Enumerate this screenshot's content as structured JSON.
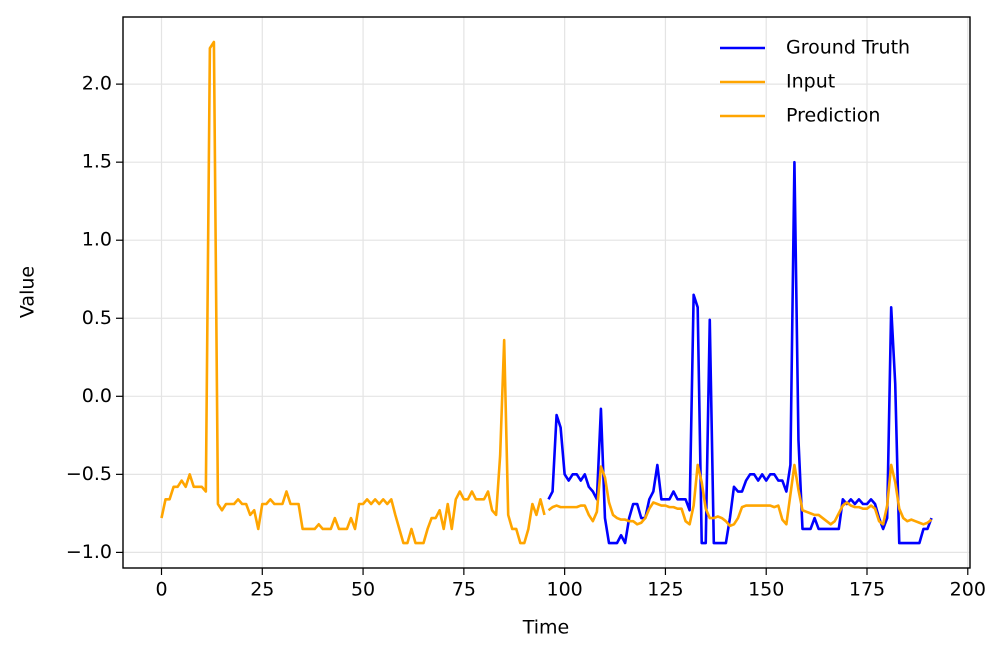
{
  "chart_data": {
    "type": "line",
    "xlabel": "Time",
    "ylabel": "Value",
    "xlim": [
      -9.55,
      200.55
    ],
    "ylim": [
      -1.1,
      2.43
    ],
    "xticks": [
      0,
      25,
      50,
      75,
      100,
      125,
      150,
      175,
      200
    ],
    "yticks": [
      {
        "value": -1.0,
        "label": "−1.0"
      },
      {
        "value": -0.5,
        "label": "−0.5"
      },
      {
        "value": 0.0,
        "label": "0.0"
      },
      {
        "value": 0.5,
        "label": "0.5"
      },
      {
        "value": 1.0,
        "label": "1.0"
      },
      {
        "value": 1.5,
        "label": "1.5"
      },
      {
        "value": 2.0,
        "label": "2.0"
      }
    ],
    "grid": true,
    "legend": "upper right",
    "series": [
      {
        "name": "Ground Truth",
        "color": "#0000ff",
        "x": [
          96,
          97,
          98,
          99,
          100,
          101,
          102,
          103,
          104,
          105,
          106,
          107,
          108,
          109,
          110,
          111,
          112,
          113,
          114,
          115,
          116,
          117,
          118,
          119,
          120,
          121,
          122,
          123,
          124,
          125,
          126,
          127,
          128,
          129,
          130,
          131,
          132,
          133,
          134,
          135,
          136,
          137,
          138,
          139,
          140,
          141,
          142,
          143,
          144,
          145,
          146,
          147,
          148,
          149,
          150,
          151,
          152,
          153,
          154,
          155,
          156,
          157,
          158,
          159,
          160,
          161,
          162,
          163,
          164,
          165,
          166,
          167,
          168,
          169,
          170,
          171,
          172,
          173,
          174,
          175,
          176,
          177,
          178,
          179,
          180,
          181,
          182,
          183,
          184,
          185,
          186,
          187,
          188,
          189,
          190,
          191
        ],
        "values": [
          -0.66,
          -0.61,
          -0.12,
          -0.2,
          -0.5,
          -0.54,
          -0.5,
          -0.5,
          -0.54,
          -0.5,
          -0.58,
          -0.61,
          -0.66,
          -0.08,
          -0.78,
          -0.94,
          -0.94,
          -0.94,
          -0.89,
          -0.94,
          -0.78,
          -0.69,
          -0.69,
          -0.78,
          -0.78,
          -0.66,
          -0.61,
          -0.44,
          -0.66,
          -0.66,
          -0.66,
          -0.61,
          -0.66,
          -0.66,
          -0.66,
          -0.73,
          0.65,
          0.57,
          -0.94,
          -0.94,
          0.49,
          -0.94,
          -0.94,
          -0.94,
          -0.94,
          -0.78,
          -0.58,
          -0.61,
          -0.61,
          -0.54,
          -0.5,
          -0.5,
          -0.54,
          -0.5,
          -0.54,
          -0.5,
          -0.5,
          -0.54,
          -0.54,
          -0.61,
          -0.44,
          1.5,
          -0.28,
          -0.85,
          -0.85,
          -0.85,
          -0.78,
          -0.85,
          -0.85,
          -0.85,
          -0.85,
          -0.85,
          -0.85,
          -0.66,
          -0.69,
          -0.66,
          -0.69,
          -0.66,
          -0.69,
          -0.69,
          -0.66,
          -0.69,
          -0.78,
          -0.85,
          -0.78,
          0.57,
          0.08,
          -0.94,
          -0.94,
          -0.94,
          -0.94,
          -0.94,
          -0.94,
          -0.85,
          -0.85,
          -0.78
        ]
      },
      {
        "name": "Input",
        "color": "#ffa500",
        "x": [
          0,
          1,
          2,
          3,
          4,
          5,
          6,
          7,
          8,
          9,
          10,
          11,
          12,
          13,
          14,
          15,
          16,
          17,
          18,
          19,
          20,
          21,
          22,
          23,
          24,
          25,
          26,
          27,
          28,
          29,
          30,
          31,
          32,
          33,
          34,
          35,
          36,
          37,
          38,
          39,
          40,
          41,
          42,
          43,
          44,
          45,
          46,
          47,
          48,
          49,
          50,
          51,
          52,
          53,
          54,
          55,
          56,
          57,
          58,
          59,
          60,
          61,
          62,
          63,
          64,
          65,
          66,
          67,
          68,
          69,
          70,
          71,
          72,
          73,
          74,
          75,
          76,
          77,
          78,
          79,
          80,
          81,
          82,
          83,
          84,
          85,
          86,
          87,
          88,
          89,
          90,
          91,
          92,
          93,
          94,
          95
        ],
        "values": [
          -0.78,
          -0.66,
          -0.66,
          -0.58,
          -0.58,
          -0.54,
          -0.58,
          -0.5,
          -0.58,
          -0.58,
          -0.58,
          -0.61,
          2.23,
          2.27,
          -0.69,
          -0.73,
          -0.69,
          -0.69,
          -0.69,
          -0.66,
          -0.69,
          -0.69,
          -0.76,
          -0.73,
          -0.85,
          -0.69,
          -0.69,
          -0.66,
          -0.69,
          -0.69,
          -0.69,
          -0.61,
          -0.69,
          -0.69,
          -0.69,
          -0.85,
          -0.85,
          -0.85,
          -0.85,
          -0.82,
          -0.85,
          -0.85,
          -0.85,
          -0.78,
          -0.85,
          -0.85,
          -0.85,
          -0.78,
          -0.85,
          -0.69,
          -0.69,
          -0.66,
          -0.69,
          -0.66,
          -0.69,
          -0.66,
          -0.69,
          -0.66,
          -0.76,
          -0.85,
          -0.94,
          -0.94,
          -0.85,
          -0.94,
          -0.94,
          -0.94,
          -0.85,
          -0.78,
          -0.78,
          -0.73,
          -0.85,
          -0.69,
          -0.85,
          -0.66,
          -0.61,
          -0.66,
          -0.66,
          -0.61,
          -0.66,
          -0.66,
          -0.66,
          -0.61,
          -0.73,
          -0.76,
          -0.38,
          0.36,
          -0.76,
          -0.85,
          -0.85,
          -0.94,
          -0.94,
          -0.85,
          -0.69,
          -0.76,
          -0.66,
          -0.76
        ]
      },
      {
        "name": "Prediction",
        "color": "#ffa500",
        "x": [
          96,
          97,
          98,
          99,
          100,
          101,
          102,
          103,
          104,
          105,
          106,
          107,
          108,
          109,
          110,
          111,
          112,
          113,
          114,
          115,
          116,
          117,
          118,
          119,
          120,
          121,
          122,
          123,
          124,
          125,
          126,
          127,
          128,
          129,
          130,
          131,
          132,
          133,
          134,
          135,
          136,
          137,
          138,
          139,
          140,
          141,
          142,
          143,
          144,
          145,
          146,
          147,
          148,
          149,
          150,
          151,
          152,
          153,
          154,
          155,
          156,
          157,
          158,
          159,
          160,
          161,
          162,
          163,
          164,
          165,
          166,
          167,
          168,
          169,
          170,
          171,
          172,
          173,
          174,
          175,
          176,
          177,
          178,
          179,
          180,
          181,
          182,
          183,
          184,
          185,
          186,
          187,
          188,
          189,
          190,
          191
        ],
        "values": [
          -0.73,
          -0.71,
          -0.7,
          -0.71,
          -0.71,
          -0.71,
          -0.71,
          -0.71,
          -0.7,
          -0.7,
          -0.76,
          -0.8,
          -0.74,
          -0.45,
          -0.52,
          -0.68,
          -0.76,
          -0.78,
          -0.79,
          -0.79,
          -0.8,
          -0.8,
          -0.82,
          -0.81,
          -0.78,
          -0.72,
          -0.68,
          -0.69,
          -0.7,
          -0.7,
          -0.71,
          -0.71,
          -0.72,
          -0.72,
          -0.8,
          -0.82,
          -0.7,
          -0.44,
          -0.55,
          -0.72,
          -0.78,
          -0.78,
          -0.77,
          -0.78,
          -0.8,
          -0.83,
          -0.82,
          -0.78,
          -0.71,
          -0.7,
          -0.7,
          -0.7,
          -0.7,
          -0.7,
          -0.7,
          -0.7,
          -0.71,
          -0.7,
          -0.79,
          -0.82,
          -0.63,
          -0.44,
          -0.6,
          -0.73,
          -0.74,
          -0.75,
          -0.76,
          -0.76,
          -0.78,
          -0.8,
          -0.82,
          -0.8,
          -0.75,
          -0.7,
          -0.68,
          -0.7,
          -0.71,
          -0.71,
          -0.72,
          -0.72,
          -0.7,
          -0.72,
          -0.8,
          -0.82,
          -0.7,
          -0.44,
          -0.55,
          -0.72,
          -0.78,
          -0.8,
          -0.79,
          -0.8,
          -0.81,
          -0.82,
          -0.81,
          -0.79
        ]
      }
    ]
  }
}
